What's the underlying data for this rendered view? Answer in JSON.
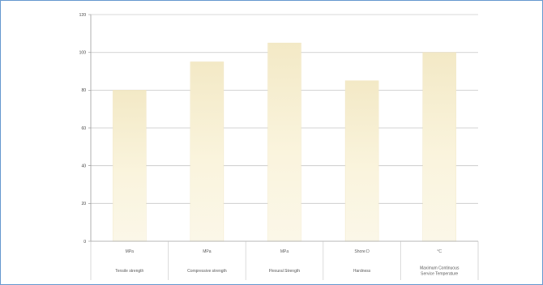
{
  "chart_data": {
    "type": "bar",
    "categories": [
      {
        "unit": "MPa",
        "name": "Tensile strength"
      },
      {
        "unit": "MPa",
        "name": "Compressive strength"
      },
      {
        "unit": "MPa",
        "name": "Flexural Strength"
      },
      {
        "unit": "Shore D",
        "name": "Hardness"
      },
      {
        "unit": "°C",
        "name": "Maximum Continuous Service Temperature"
      }
    ],
    "values": [
      80,
      95,
      105,
      85,
      100
    ],
    "ylim": [
      0,
      120
    ],
    "yticks": [
      0,
      20,
      40,
      60,
      80,
      100,
      120
    ],
    "grid": true,
    "legend": "none",
    "bar_color_top": "#f3e9c6",
    "bar_color_bottom": "#fbf7e8",
    "grid_color": "#c9c9c9",
    "border_color": "#6f9fd2"
  }
}
